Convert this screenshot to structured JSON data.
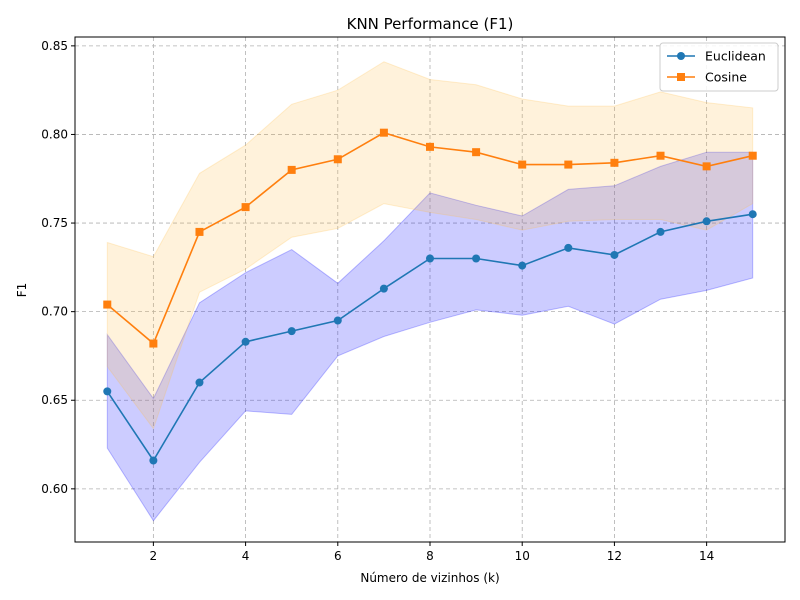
{
  "chart_data": {
    "type": "line",
    "title": "KNN Performance (F1)",
    "xlabel": "Número de vizinhos (k)",
    "ylabel": "F1",
    "xlim": [
      0.3,
      15.7
    ],
    "ylim": [
      0.57,
      0.855
    ],
    "x_ticks": [
      2,
      4,
      6,
      8,
      10,
      12,
      14
    ],
    "y_ticks": [
      0.6,
      0.65,
      0.7,
      0.75,
      0.8,
      0.85
    ],
    "x_tick_labels": [
      "2",
      "4",
      "6",
      "8",
      "10",
      "12",
      "14"
    ],
    "y_tick_labels": [
      "0.60",
      "0.65",
      "0.70",
      "0.75",
      "0.80",
      "0.85"
    ],
    "grid": true,
    "legend_position": "top-right",
    "x": [
      1,
      2,
      3,
      4,
      5,
      6,
      7,
      8,
      9,
      10,
      11,
      12,
      13,
      14,
      15
    ],
    "series": [
      {
        "name": "Euclidean",
        "color": "#1f77b4",
        "band_color": "#0000ff",
        "marker": "circle",
        "values": [
          0.655,
          0.616,
          0.66,
          0.683,
          0.689,
          0.695,
          0.713,
          0.73,
          0.73,
          0.726,
          0.736,
          0.732,
          0.745,
          0.751,
          0.755
        ],
        "lower": [
          0.623,
          0.582,
          0.615,
          0.644,
          0.642,
          0.675,
          0.686,
          0.694,
          0.701,
          0.698,
          0.703,
          0.693,
          0.707,
          0.712,
          0.719
        ],
        "upper": [
          0.687,
          0.651,
          0.705,
          0.722,
          0.735,
          0.716,
          0.74,
          0.767,
          0.76,
          0.754,
          0.769,
          0.771,
          0.782,
          0.79,
          0.79
        ]
      },
      {
        "name": "Cosine",
        "color": "#ff7f0e",
        "band_color": "#ffc04d",
        "marker": "square",
        "values": [
          0.704,
          0.682,
          0.745,
          0.759,
          0.78,
          0.786,
          0.801,
          0.793,
          0.79,
          0.783,
          0.783,
          0.784,
          0.788,
          0.782,
          0.788
        ],
        "lower": [
          0.669,
          0.634,
          0.711,
          0.724,
          0.742,
          0.747,
          0.761,
          0.756,
          0.752,
          0.746,
          0.751,
          0.752,
          0.752,
          0.746,
          0.761
        ],
        "upper": [
          0.739,
          0.731,
          0.778,
          0.794,
          0.817,
          0.825,
          0.841,
          0.831,
          0.828,
          0.82,
          0.816,
          0.816,
          0.824,
          0.818,
          0.815
        ]
      }
    ]
  }
}
